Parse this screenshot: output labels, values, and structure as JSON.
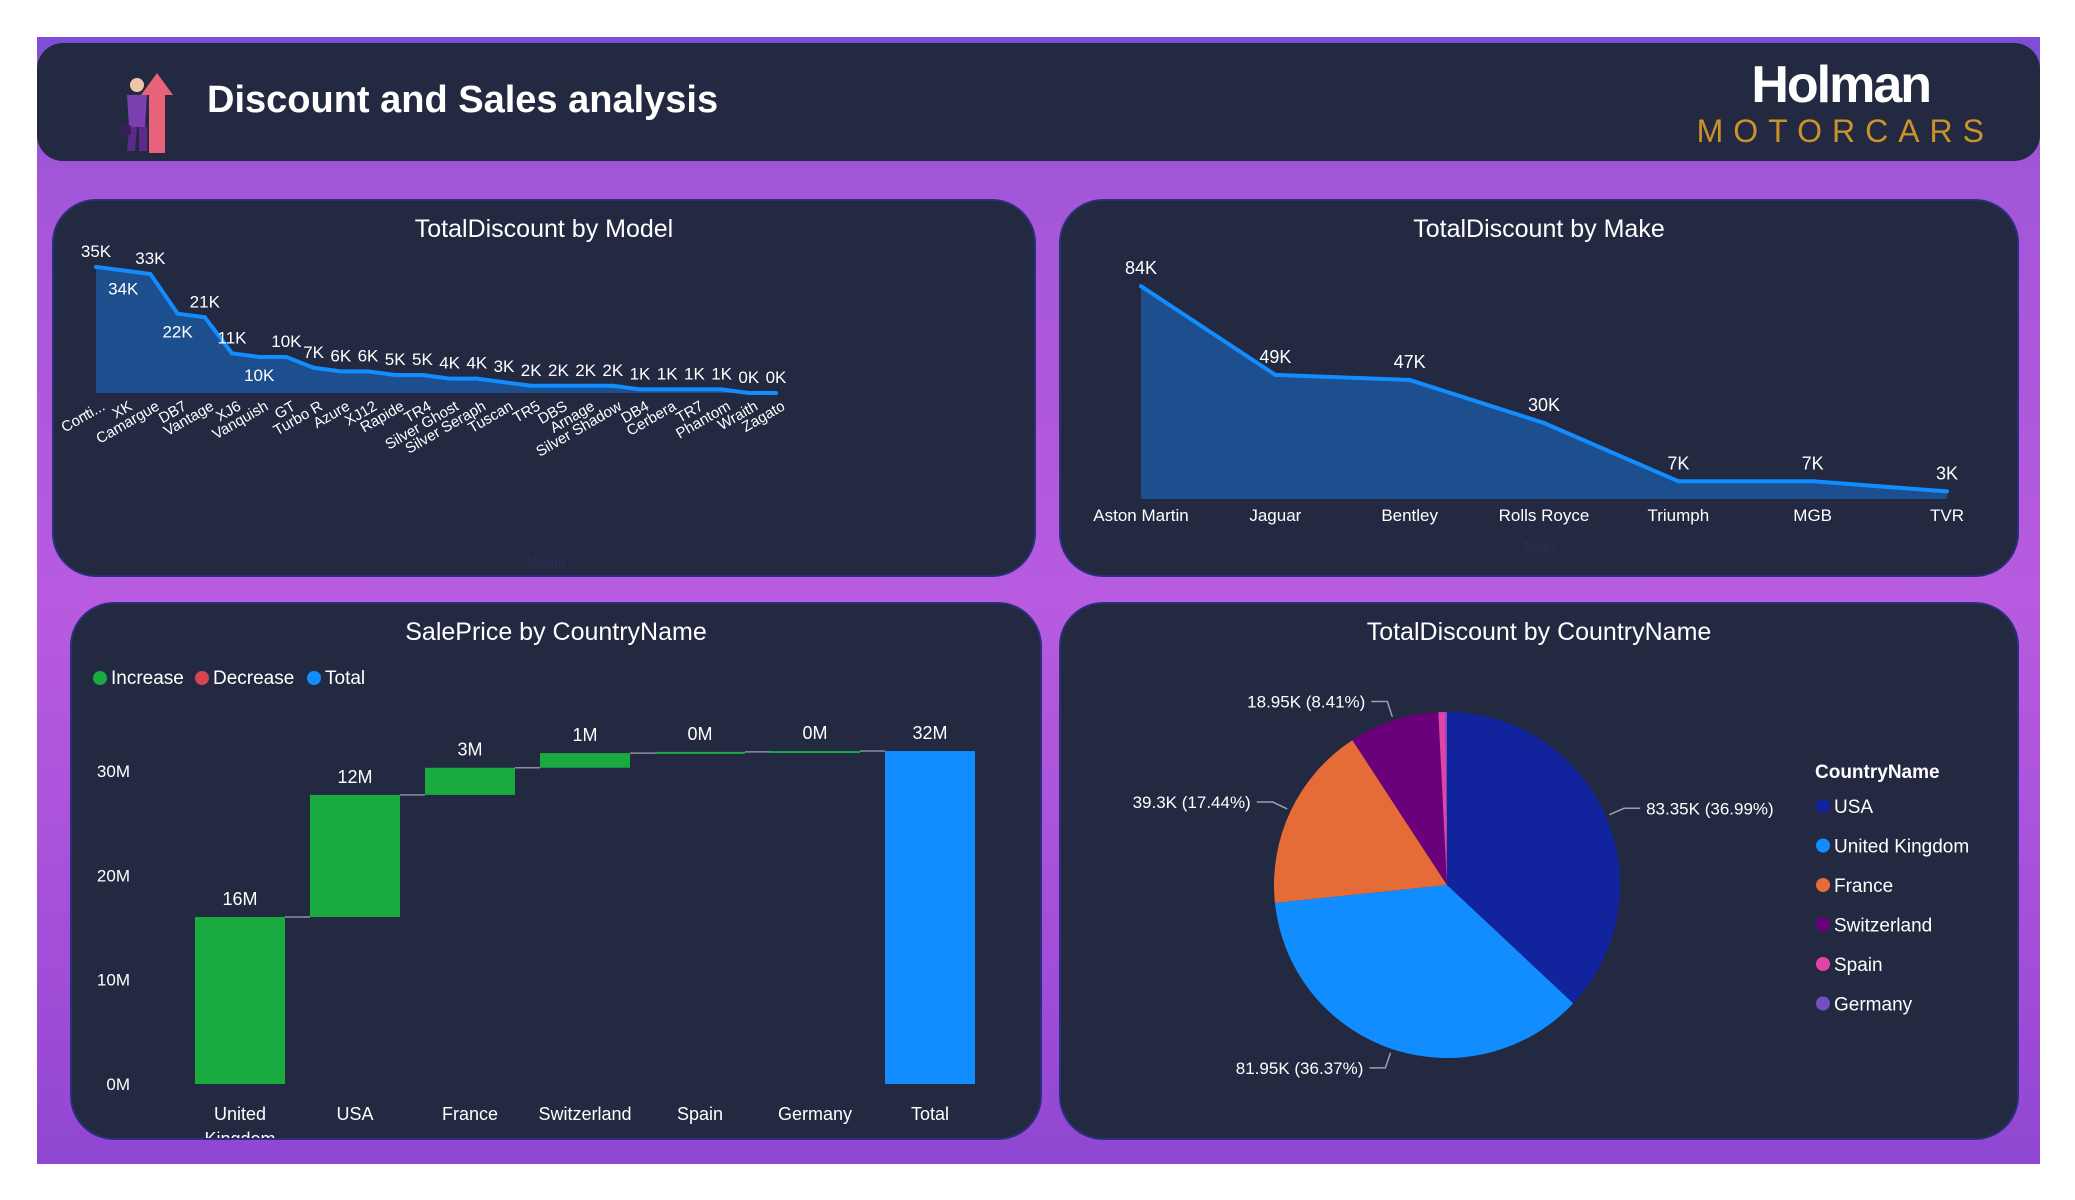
{
  "header": {
    "title": "Discount and Sales analysis",
    "brand_name": "Holman",
    "brand_sub": "MOTORCARS"
  },
  "colors": {
    "background": "#ffffff",
    "frame_purple": "#a855d8",
    "panel_bg": "#222941",
    "line_blue": "#118dff",
    "area_blue": "#1d4f8f",
    "increase": "#1aab40",
    "decrease": "#d64550",
    "total": "#118dff"
  },
  "chart_data": [
    {
      "type": "area",
      "title": "TotalDiscount by Model",
      "xlabel": "Model",
      "ylabel": "",
      "categories": [
        "Conti...",
        "XK",
        "Camargue",
        "DB7",
        "Vantage",
        "XJ6",
        "Vanquish",
        "GT",
        "Turbo R",
        "Azure",
        "XJ12",
        "Rapide",
        "TR4",
        "Silver Ghost",
        "Silver Seraph",
        "Tuscan",
        "TR5",
        "DBS",
        "Arnage",
        "Silver Shadow",
        "DB4",
        "Cerbera",
        "TR7",
        "Phantom",
        "Wraith",
        "Zagato"
      ],
      "values": [
        35000,
        34000,
        33000,
        22000,
        21000,
        11000,
        10000,
        10000,
        7000,
        6000,
        6000,
        5000,
        5000,
        4000,
        4000,
        3000,
        2000,
        2000,
        2000,
        2000,
        1000,
        1000,
        1000,
        1000,
        0,
        0
      ],
      "data_labels": [
        "35K",
        "34K",
        "33K",
        "22K",
        "21K",
        "11K",
        "10K",
        "10K",
        "7K",
        "6K",
        "6K",
        "5K",
        "5K",
        "4K",
        "4K",
        "3K",
        "2K",
        "2K",
        "2K",
        "2K",
        "1K",
        "1K",
        "1K",
        "1K",
        "0K",
        "0K"
      ],
      "extra_tick_label": "...",
      "ylim": [
        0,
        38000
      ],
      "grid": false
    },
    {
      "type": "area",
      "title": "TotalDiscount by Make",
      "xlabel": "Make",
      "ylabel": "",
      "categories": [
        "Aston Martin",
        "Jaguar",
        "Bentley",
        "Rolls Royce",
        "Triumph",
        "MGB",
        "TVR"
      ],
      "values": [
        84000,
        49000,
        47000,
        30000,
        7000,
        7000,
        3000
      ],
      "data_labels": [
        "84K",
        "49K",
        "47K",
        "30K",
        "7K",
        "7K",
        "3K"
      ],
      "ylim": [
        0,
        90000
      ],
      "grid": false
    },
    {
      "type": "bar",
      "subtype": "waterfall",
      "title": "SalePrice by CountryName",
      "legend": [
        "Increase",
        "Decrease",
        "Total"
      ],
      "legend_position": "top-left",
      "categories": [
        "United Kingdom",
        "USA",
        "France",
        "Switzerland",
        "Spain",
        "Germany",
        "Total"
      ],
      "values": [
        16000000,
        11700000,
        2600000,
        1400000,
        120000,
        80000,
        31900000
      ],
      "kinds": [
        "increase",
        "increase",
        "increase",
        "increase",
        "increase",
        "increase",
        "total"
      ],
      "data_labels": [
        "16M",
        "12M",
        "3M",
        "1M",
        "0M",
        "0M",
        "32M"
      ],
      "yticks": [
        "0M",
        "10M",
        "20M",
        "30M"
      ],
      "ylim": [
        0,
        32000000
      ],
      "grid": false
    },
    {
      "type": "pie",
      "title": "TotalDiscount by CountryName",
      "legend_title": "CountryName",
      "legend_position": "right",
      "categories": [
        "USA",
        "United Kingdom",
        "France",
        "Switzerland",
        "Spain",
        "Germany"
      ],
      "values": [
        83350,
        81950,
        39300,
        18950,
        1500,
        300
      ],
      "colors": [
        "#12239e",
        "#118dff",
        "#e66c37",
        "#6b007b",
        "#e044a7",
        "#744ec2"
      ],
      "data_labels": [
        "83.35K (36.99%)",
        "81.95K (36.37%)",
        "39.3K (17.44%)",
        "18.95K (8.41%)",
        "",
        ""
      ]
    }
  ]
}
